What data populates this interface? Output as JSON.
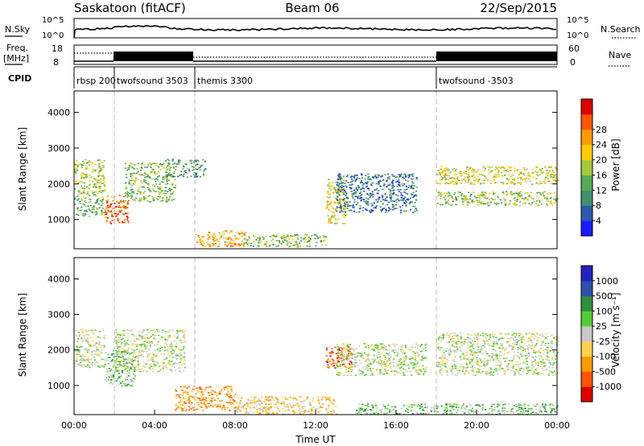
{
  "header": {
    "station": "Saskatoon (fitACF)",
    "beam": "Beam 06",
    "date": "22/Sep/2015"
  },
  "strip_labels": {
    "nsky": "N.Sky",
    "nsearch": "N.Search",
    "freq_line1": "Freq.",
    "freq_line2": "[MHz]",
    "nave": "Nave",
    "cpid": "CPID",
    "sky_ticks": [
      "10^5",
      "10^0"
    ],
    "search_ticks": [
      "10^5",
      "10^0"
    ],
    "freq_ticks": [
      "18",
      "8"
    ],
    "nave_ticks": [
      "60",
      "0"
    ]
  },
  "cpid_segments": [
    {
      "label": "rbsp 200",
      "start_h": 0.0
    },
    {
      "label": "twofsound 3503",
      "start_h": 2.0
    },
    {
      "label": "themis 3300",
      "start_h": 6.0
    },
    {
      "label": "twofsound -3503",
      "start_h": 18.0
    }
  ],
  "colors": {
    "power": [
      "#1a1aff",
      "#2c5aa8",
      "#3f8f70",
      "#5aaa55",
      "#a8c83c",
      "#ffcc00",
      "#ff9900",
      "#ff5500",
      "#dd0000"
    ],
    "velocity": [
      "#2222bb",
      "#2e4faa",
      "#2f8f3f",
      "#55cc33",
      "#c8c8c8",
      "#ffd24d",
      "#ff9900",
      "#ff5500",
      "#dd0000"
    ]
  },
  "chart_data": [
    {
      "type": "heatmap",
      "quantity": "power",
      "xlabel": "",
      "ylabel": "Slant Range [km]",
      "xlim_hours": [
        0,
        24
      ],
      "ylim_km": [
        180,
        4600
      ],
      "yticks": [
        "1000",
        "2000",
        "3000",
        "4000"
      ],
      "colorbar": {
        "label": "Power [dB]",
        "ticks": [
          "4",
          "8",
          "12",
          "16",
          "20",
          "24",
          "28"
        ],
        "range": [
          0,
          32
        ]
      },
      "echo_regions": [
        {
          "t0": 0.0,
          "t1": 1.5,
          "r0": 1600,
          "r1": 2700,
          "level": 16
        },
        {
          "t0": 0.0,
          "t1": 1.5,
          "r0": 1100,
          "r1": 1600,
          "level": 12
        },
        {
          "t0": 1.5,
          "t1": 2.7,
          "r0": 900,
          "r1": 1700,
          "level": 26
        },
        {
          "t0": 2.5,
          "t1": 5.0,
          "r0": 1500,
          "r1": 2600,
          "level": 14
        },
        {
          "t0": 4.5,
          "t1": 6.5,
          "r0": 2200,
          "r1": 2700,
          "level": 10
        },
        {
          "t0": 6.0,
          "t1": 8.5,
          "r0": 250,
          "r1": 700,
          "level": 22
        },
        {
          "t0": 8.5,
          "t1": 12.5,
          "r0": 250,
          "r1": 600,
          "level": 14
        },
        {
          "t0": 12.5,
          "t1": 13.5,
          "r0": 900,
          "r1": 2200,
          "level": 18
        },
        {
          "t0": 13.0,
          "t1": 17.0,
          "r0": 1200,
          "r1": 2300,
          "level": 7
        },
        {
          "t0": 18.0,
          "t1": 24.0,
          "r0": 2000,
          "r1": 2500,
          "level": 18
        },
        {
          "t0": 18.0,
          "t1": 24.0,
          "r0": 1400,
          "r1": 1800,
          "level": 15
        }
      ]
    },
    {
      "type": "heatmap",
      "quantity": "velocity",
      "xlabel": "Time UT",
      "ylabel": "Slant Range [km]",
      "xlim_hours": [
        0,
        24
      ],
      "ylim_km": [
        180,
        4600
      ],
      "xticks": [
        "00:00",
        "04:00",
        "08:00",
        "12:00",
        "16:00",
        "20:00",
        "00:00"
      ],
      "yticks": [
        "1000",
        "2000",
        "3000",
        "4000"
      ],
      "colorbar": {
        "label": "Velocity [m s⁻¹]",
        "ticks": [
          "1000",
          "500",
          "100",
          "25",
          "-25",
          "-100",
          "-500",
          "-1000"
        ]
      },
      "echo_regions": [
        {
          "t0": 0.0,
          "t1": 1.5,
          "r0": 1500,
          "r1": 2600,
          "level": 4
        },
        {
          "t0": 1.5,
          "t1": 3.0,
          "r0": 1000,
          "r1": 2000,
          "level": 3
        },
        {
          "t0": 2.0,
          "t1": 5.5,
          "r0": 1400,
          "r1": 2600,
          "level": 4
        },
        {
          "t0": 5.0,
          "t1": 8.0,
          "r0": 300,
          "r1": 1000,
          "level": 6
        },
        {
          "t0": 8.0,
          "t1": 13.0,
          "r0": 200,
          "r1": 700,
          "level": 5
        },
        {
          "t0": 12.5,
          "t1": 13.8,
          "r0": 1500,
          "r1": 2100,
          "level": 7
        },
        {
          "t0": 13.0,
          "t1": 17.5,
          "r0": 1300,
          "r1": 2200,
          "level": 4
        },
        {
          "t0": 14.0,
          "t1": 24.0,
          "r0": 200,
          "r1": 500,
          "level": 3
        },
        {
          "t0": 18.0,
          "t1": 24.0,
          "r0": 1300,
          "r1": 2500,
          "level": 4
        }
      ]
    }
  ]
}
